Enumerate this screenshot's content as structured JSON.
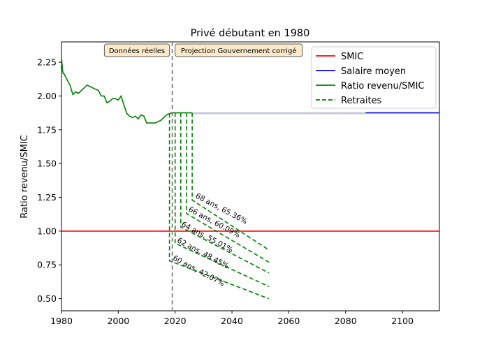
{
  "chart_data": {
    "type": "line",
    "title": "Privé débutant en 1980",
    "xlabel": "",
    "ylabel": "Ratio revenu/SMIC",
    "xlim": [
      1980,
      2113
    ],
    "ylim": [
      0.41,
      2.4
    ],
    "x_ticks": [
      1980,
      2000,
      2020,
      2040,
      2060,
      2080,
      2100
    ],
    "y_ticks": [
      0.5,
      0.75,
      1.0,
      1.25,
      1.5,
      1.75,
      2.0,
      2.25
    ],
    "legend_position": "top-right",
    "legend": [
      {
        "label": "SMIC",
        "color": "#ff0000",
        "style": "solid"
      },
      {
        "label": "Salaire moyen",
        "color": "#0000ff",
        "style": "solid"
      },
      {
        "label": "Ratio revenu/SMIC",
        "color": "#008000",
        "style": "solid"
      },
      {
        "label": "Retraites",
        "color": "#008000",
        "style": "dashed"
      }
    ],
    "split_year": 2019,
    "annotations": {
      "left": "Données réelles",
      "right": "Projection Gouvernement corrigé"
    },
    "series": [
      {
        "name": "SMIC",
        "color": "#ff0000",
        "style": "solid",
        "x": [
          1980,
          2113
        ],
        "y": [
          1.0,
          1.0
        ]
      },
      {
        "name": "Salaire moyen",
        "color": "#0000ff",
        "style": "solid",
        "x": [
          2019,
          2113
        ],
        "y": [
          1.875,
          1.875
        ]
      },
      {
        "name": "Ratio revenu/SMIC",
        "color": "#008000",
        "style": "solid",
        "x": [
          1980,
          1980.5,
          1981,
          1982,
          1983,
          1984,
          1985,
          1986,
          1987,
          1988,
          1989,
          1990,
          1991,
          1992,
          1993,
          1994,
          1995,
          1996,
          1997,
          1998,
          1999,
          2000,
          2001,
          2002,
          2003,
          2004,
          2005,
          2006,
          2007,
          2008,
          2009,
          2010,
          2011,
          2012,
          2013,
          2014,
          2015,
          2016,
          2017,
          2018,
          2019,
          2020,
          2021,
          2022,
          2023,
          2024,
          2025,
          2026
        ],
        "y": [
          2.28,
          2.17,
          2.16,
          2.12,
          2.08,
          2.01,
          2.03,
          2.02,
          2.04,
          2.06,
          2.08,
          2.07,
          2.06,
          2.05,
          2.04,
          2.0,
          2.0,
          1.95,
          1.96,
          1.98,
          1.98,
          1.97,
          2.0,
          1.93,
          1.87,
          1.85,
          1.84,
          1.85,
          1.83,
          1.86,
          1.85,
          1.8,
          1.8,
          1.8,
          1.8,
          1.81,
          1.82,
          1.84,
          1.86,
          1.87,
          1.875,
          1.875,
          1.875,
          1.875,
          1.875,
          1.875,
          1.875,
          1.875
        ]
      },
      {
        "name": "Retraite 60 ans",
        "color": "#008000",
        "style": "dashed",
        "start": 2018,
        "top": 1.87,
        "x": [
          2018,
          2053
        ],
        "y": [
          0.78,
          0.5
        ]
      },
      {
        "name": "Retraite 62 ans",
        "color": "#008000",
        "style": "dashed",
        "start": 2020,
        "top": 1.875,
        "x": [
          2020,
          2053
        ],
        "y": [
          0.91,
          0.59
        ]
      },
      {
        "name": "Retraite 64 ans",
        "color": "#008000",
        "style": "dashed",
        "start": 2022,
        "top": 1.875,
        "x": [
          2022,
          2053
        ],
        "y": [
          1.03,
          0.69
        ]
      },
      {
        "name": "Retraite 66 ans",
        "color": "#008000",
        "style": "dashed",
        "start": 2024,
        "top": 1.875,
        "x": [
          2024,
          2053
        ],
        "y": [
          1.13,
          0.77
        ]
      },
      {
        "name": "Retraite 68 ans",
        "color": "#008000",
        "style": "dashed",
        "start": 2026,
        "top": 1.875,
        "x": [
          2026,
          2053
        ],
        "y": [
          1.23,
          0.86
        ]
      }
    ],
    "retirement_labels": [
      {
        "text": "60 ans, 42.07%",
        "x": 2019,
        "y": 0.79
      },
      {
        "text": "62 ans, 48.45%",
        "x": 2020.5,
        "y": 0.92
      },
      {
        "text": "64 ans, 55.01%",
        "x": 2022,
        "y": 1.04
      },
      {
        "text": "66 ans, 60.09%",
        "x": 2024.5,
        "y": 1.15
      },
      {
        "text": "68 ans, 65.36%",
        "x": 2027,
        "y": 1.25
      }
    ]
  }
}
